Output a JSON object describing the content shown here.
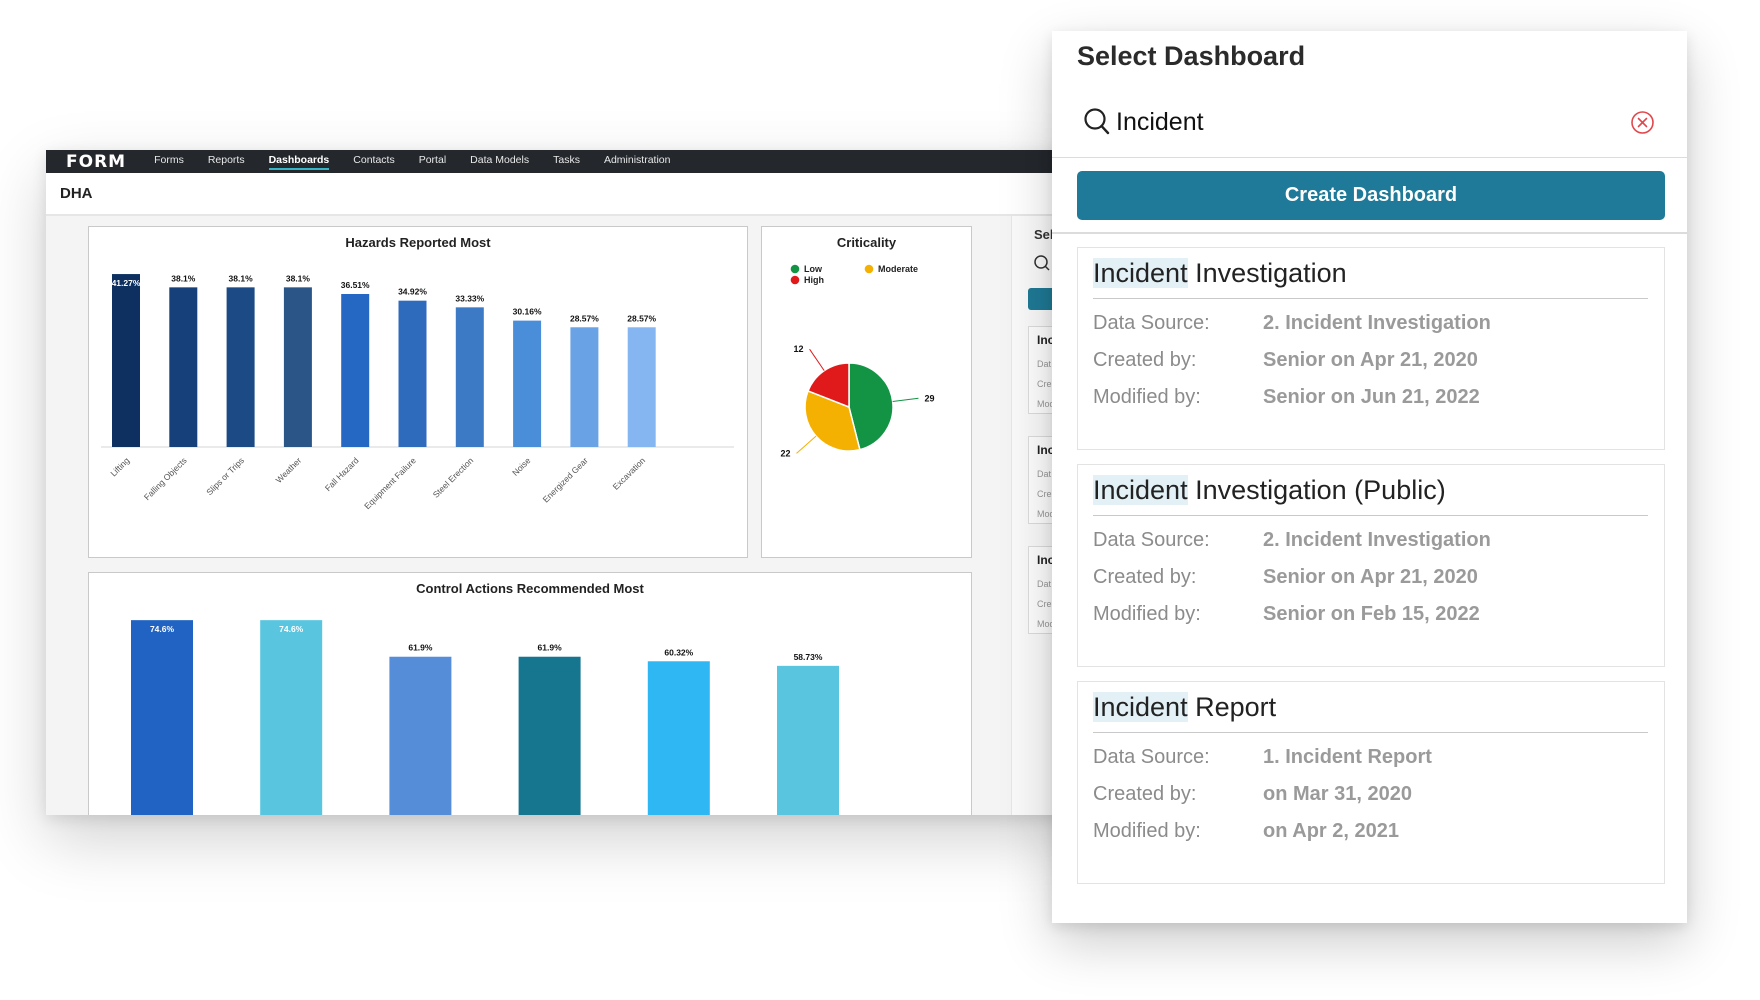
{
  "app": {
    "logo": "FORM",
    "nav": [
      "Forms",
      "Reports",
      "Dashboards",
      "Contacts",
      "Portal",
      "Data Models",
      "Tasks",
      "Administration"
    ],
    "active_nav": "Dashboards",
    "page_title": "DHA"
  },
  "side_strip": {
    "label": "Sele",
    "cards": [
      {
        "title": "Inc",
        "lines": [
          "Dat",
          "Cre",
          "Mod"
        ]
      },
      {
        "title": "Inc",
        "lines": [
          "Dat",
          "Cre",
          "Mod"
        ]
      },
      {
        "title": "Inc",
        "lines": [
          "Dat",
          "Cre",
          "Mod"
        ]
      }
    ]
  },
  "chart_data": [
    {
      "type": "bar",
      "title": "Hazards Reported Most",
      "categories": [
        "Lifting",
        "Falling Objects",
        "Slips or Trips",
        "Weather",
        "Fall Hazard",
        "Equipment Failure",
        "Steel Erection",
        "Noise",
        "Energized Gear",
        "Excavation"
      ],
      "values": [
        41.27,
        38.1,
        38.1,
        38.1,
        36.51,
        34.92,
        33.33,
        30.16,
        28.57,
        28.57
      ],
      "labels": [
        "41.27%",
        "38.1%",
        "38.1%",
        "38.1%",
        "36.51%",
        "34.92%",
        "33.33%",
        "30.16%",
        "28.57%",
        "28.57%"
      ],
      "colors": [
        "#0d3060",
        "#16407a",
        "#1c4a84",
        "#2a5586",
        "#2468c4",
        "#2f6bbd",
        "#3d7ac6",
        "#4a8ed9",
        "#6aa3e5",
        "#86b6f2"
      ],
      "ylim": [
        0,
        42
      ]
    },
    {
      "type": "pie",
      "title": "Criticality",
      "legend": [
        {
          "name": "Low",
          "color": "#139444"
        },
        {
          "name": "Moderate",
          "color": "#f5b101"
        },
        {
          "name": "High",
          "color": "#e01a1a"
        }
      ],
      "slices": [
        {
          "name": "Low",
          "value": 29,
          "color": "#139444"
        },
        {
          "name": "Moderate",
          "value": 22,
          "color": "#f5b101"
        },
        {
          "name": "High",
          "value": 12,
          "color": "#e01a1a"
        }
      ]
    },
    {
      "type": "bar",
      "title": "Control Actions Recommended Most",
      "values": [
        74.6,
        74.6,
        61.9,
        61.9,
        60.32,
        58.73
      ],
      "labels": [
        "74.6%",
        "74.6%",
        "61.9%",
        "61.9%",
        "60.32%",
        "58.73%"
      ],
      "colors": [
        "#2063c2",
        "#5ac5df",
        "#568dd9",
        "#16758f",
        "#2fb7f3",
        "#5ac5df"
      ],
      "ylim": [
        0,
        75
      ]
    }
  ],
  "modal": {
    "title": "Select Dashboard",
    "search_value": "Incident",
    "create_label": "Create Dashboard",
    "labels": {
      "source": "Data Source:",
      "created": "Created by:",
      "modified": "Modified by:"
    },
    "results": [
      {
        "match": "Incident",
        "rest": " Investigation",
        "source": "2. Incident Investigation",
        "created": "Senior on Apr 21, 2020",
        "modified": "Senior on Jun 21, 2022"
      },
      {
        "match": "Incident",
        "rest": " Investigation (Public)",
        "source": "2. Incident Investigation",
        "created": "Senior on Apr 21, 2020",
        "modified": "Senior on Feb 15, 2022"
      },
      {
        "match": "Incident",
        "rest": " Report",
        "source": "1. Incident Report",
        "created": "on Mar 31, 2020",
        "modified": "on Apr 2, 2021"
      }
    ]
  },
  "colors": {
    "accent": "#1e7a98",
    "nav_bg": "#24282d",
    "clear_icon": "#e0474c"
  }
}
